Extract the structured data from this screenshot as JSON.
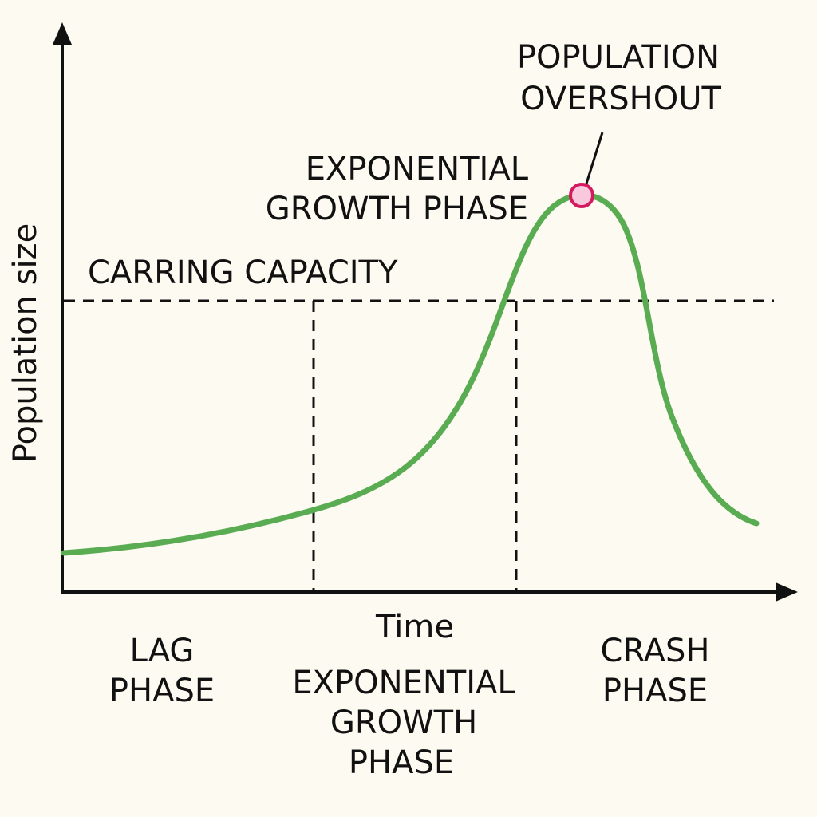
{
  "axes": {
    "y_label": "Population size",
    "x_label": "Time"
  },
  "annotations": {
    "overshoot": [
      "POPULATION",
      "OVERSHOUT"
    ],
    "growth_phase": [
      "EXPONENTIAL",
      "GROWTH PHASE"
    ],
    "carrying_capacity": "CARRING CAPACITY"
  },
  "phases": [
    {
      "label": [
        "LAG",
        "PHASE"
      ]
    },
    {
      "label": [
        "EXPONENTIAL",
        "GROWTH",
        "PHASE"
      ]
    },
    {
      "label": [
        "CRASH",
        "PHASE"
      ]
    }
  ]
}
